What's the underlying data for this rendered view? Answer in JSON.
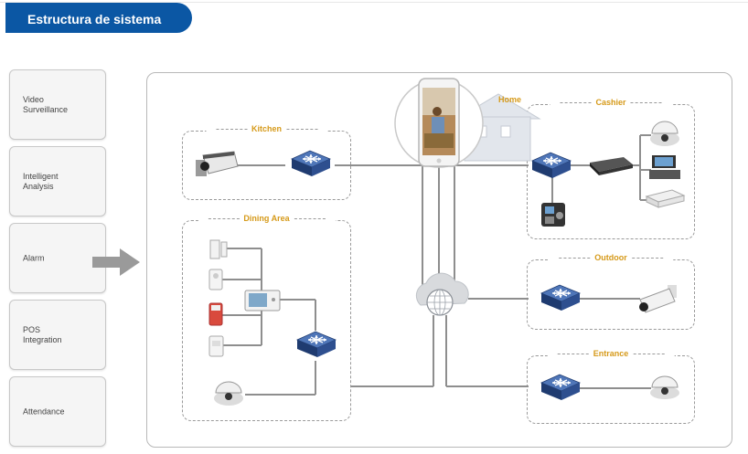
{
  "header": {
    "title": "Estructura de sistema"
  },
  "sidebar": {
    "items": [
      {
        "label": "Video\nSurveillance"
      },
      {
        "label": "Intelligent\nAnalysis"
      },
      {
        "label": "Alarm"
      },
      {
        "label": "POS\nIntegration"
      },
      {
        "label": "Attendance"
      }
    ]
  },
  "diagram": {
    "home_label": "Home",
    "zones": {
      "kitchen": "Kitchen",
      "dining": "Dining Area",
      "cashier": "Cashier",
      "outdoor": "Outdoor",
      "entrance": "Entrance"
    },
    "colors": {
      "accent": "#0b57a4",
      "zone_title": "#d69a1a",
      "switch": "#2e4f8f"
    },
    "icons": [
      "arrow-right-icon",
      "switch-icon",
      "bullet-camera-icon",
      "dome-camera-icon",
      "door-sensor-icon",
      "pir-sensor-icon",
      "siren-icon",
      "smoke-detector-icon",
      "indoor-monitor-icon",
      "nvr-icon",
      "pos-terminal-icon",
      "fingerprint-terminal-icon",
      "ptz-camera-icon",
      "cloud-network-icon",
      "smartphone-icon",
      "house-icon"
    ]
  }
}
